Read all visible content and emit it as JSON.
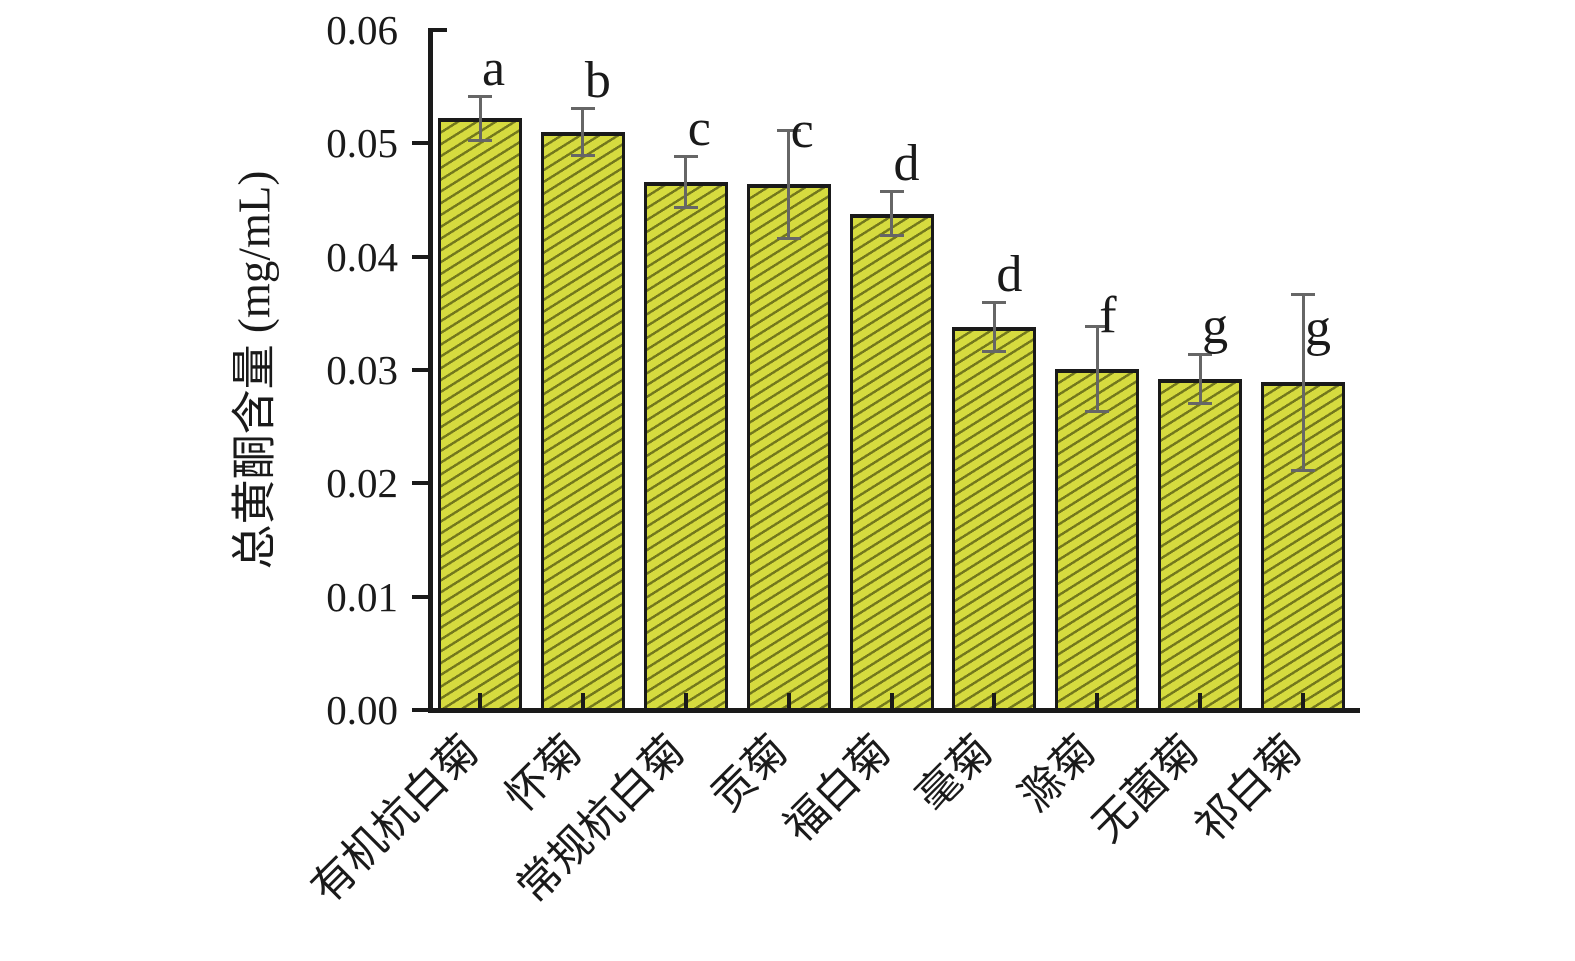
{
  "chart_data": {
    "type": "bar",
    "title": "",
    "ylabel": "总黄酮含量 (mg/mL)",
    "xlabel": "",
    "ylim": [
      0,
      0.06
    ],
    "ytick_interval": 0.01,
    "ytick_labels": [
      "0.00",
      "0.01",
      "0.02",
      "0.03",
      "0.04",
      "0.05",
      "0.06"
    ],
    "categories": [
      "有机杭白菊",
      "怀菊",
      "常规杭白菊",
      "贡菊",
      "福白菊",
      "毫菊",
      "滁菊",
      "无菌菊",
      "祁白菊"
    ],
    "values": [
      0.0522,
      0.051,
      0.0466,
      0.0464,
      0.0438,
      0.0338,
      0.0301,
      0.0292,
      0.0289
    ],
    "error_bars": [
      0.0021,
      0.0022,
      0.0024,
      0.0049,
      0.0021,
      0.0023,
      0.0039,
      0.0023,
      0.0079
    ],
    "sig_letters": [
      "a",
      "b",
      "c",
      "c",
      "d",
      "d",
      "f",
      "g",
      "g"
    ],
    "grid": false,
    "legend_position": "none",
    "bar_hatch_style": "diagonal-forward",
    "colors": {
      "bar_fill": "#d6db3f",
      "bar_hatch": "#73781c",
      "bar_border": "#1a1a1a",
      "error_bar": "#666666",
      "axis": "#1a1a1a",
      "text": "#1a1a1a",
      "background": "#ffffff"
    }
  }
}
